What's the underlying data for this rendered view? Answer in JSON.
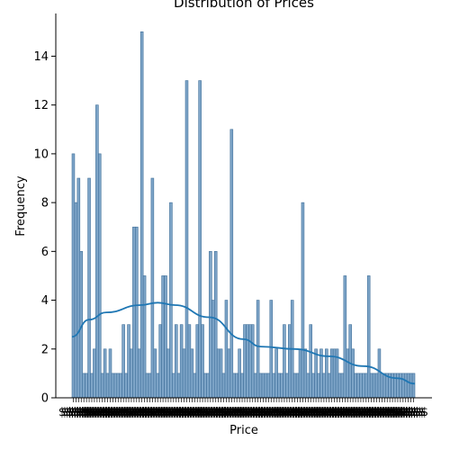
{
  "chart_data": {
    "type": "bar",
    "title": "Distribution of Prices",
    "xlabel": "Price",
    "ylabel": "Frequency",
    "ylim": [
      0,
      15.75
    ],
    "yticks": [
      0,
      2,
      4,
      6,
      8,
      10,
      12,
      14
    ],
    "x_tick_label": "$$$$",
    "values": [
      10,
      8,
      9,
      6,
      1,
      1,
      9,
      1,
      2,
      12,
      10,
      1,
      2,
      1,
      2,
      1,
      1,
      1,
      1,
      3,
      1,
      3,
      2,
      7,
      7,
      2,
      15,
      5,
      1,
      1,
      9,
      2,
      1,
      3,
      5,
      5,
      2,
      8,
      1,
      3,
      1,
      3,
      2,
      13,
      3,
      2,
      1,
      3,
      13,
      3,
      1,
      1,
      6,
      4,
      6,
      2,
      2,
      1,
      4,
      2,
      11,
      1,
      1,
      2,
      1,
      3,
      3,
      3,
      3,
      1,
      4,
      1,
      1,
      1,
      1,
      4,
      1,
      2,
      1,
      1,
      3,
      1,
      3,
      4,
      1,
      1,
      2,
      8,
      2,
      1,
      3,
      1,
      2,
      1,
      2,
      1,
      2,
      1,
      2,
      2,
      2,
      1,
      1,
      5,
      2,
      3,
      2,
      1,
      1,
      1,
      1,
      1,
      5,
      1,
      1,
      1,
      2,
      1,
      1,
      1,
      1,
      1,
      1,
      1,
      1,
      1,
      1,
      1,
      1,
      1
    ],
    "series": [
      {
        "type": "kde",
        "color": "#1f77b4",
        "points": [
          [
            0,
            2.5
          ],
          [
            0.05,
            3.2
          ],
          [
            0.1,
            3.5
          ],
          [
            0.2,
            3.8
          ],
          [
            0.25,
            3.9
          ],
          [
            0.3,
            3.8
          ],
          [
            0.4,
            3.3
          ],
          [
            0.5,
            2.4
          ],
          [
            0.55,
            2.1
          ],
          [
            0.65,
            2.0
          ],
          [
            0.75,
            1.7
          ],
          [
            0.85,
            1.3
          ],
          [
            0.95,
            0.8
          ],
          [
            1.0,
            0.58
          ]
        ]
      }
    ],
    "colors": {
      "bar_fill": "#7ea5c8",
      "bar_edge": "#3f6f99",
      "kde": "#1f77b4"
    },
    "grid": false
  }
}
